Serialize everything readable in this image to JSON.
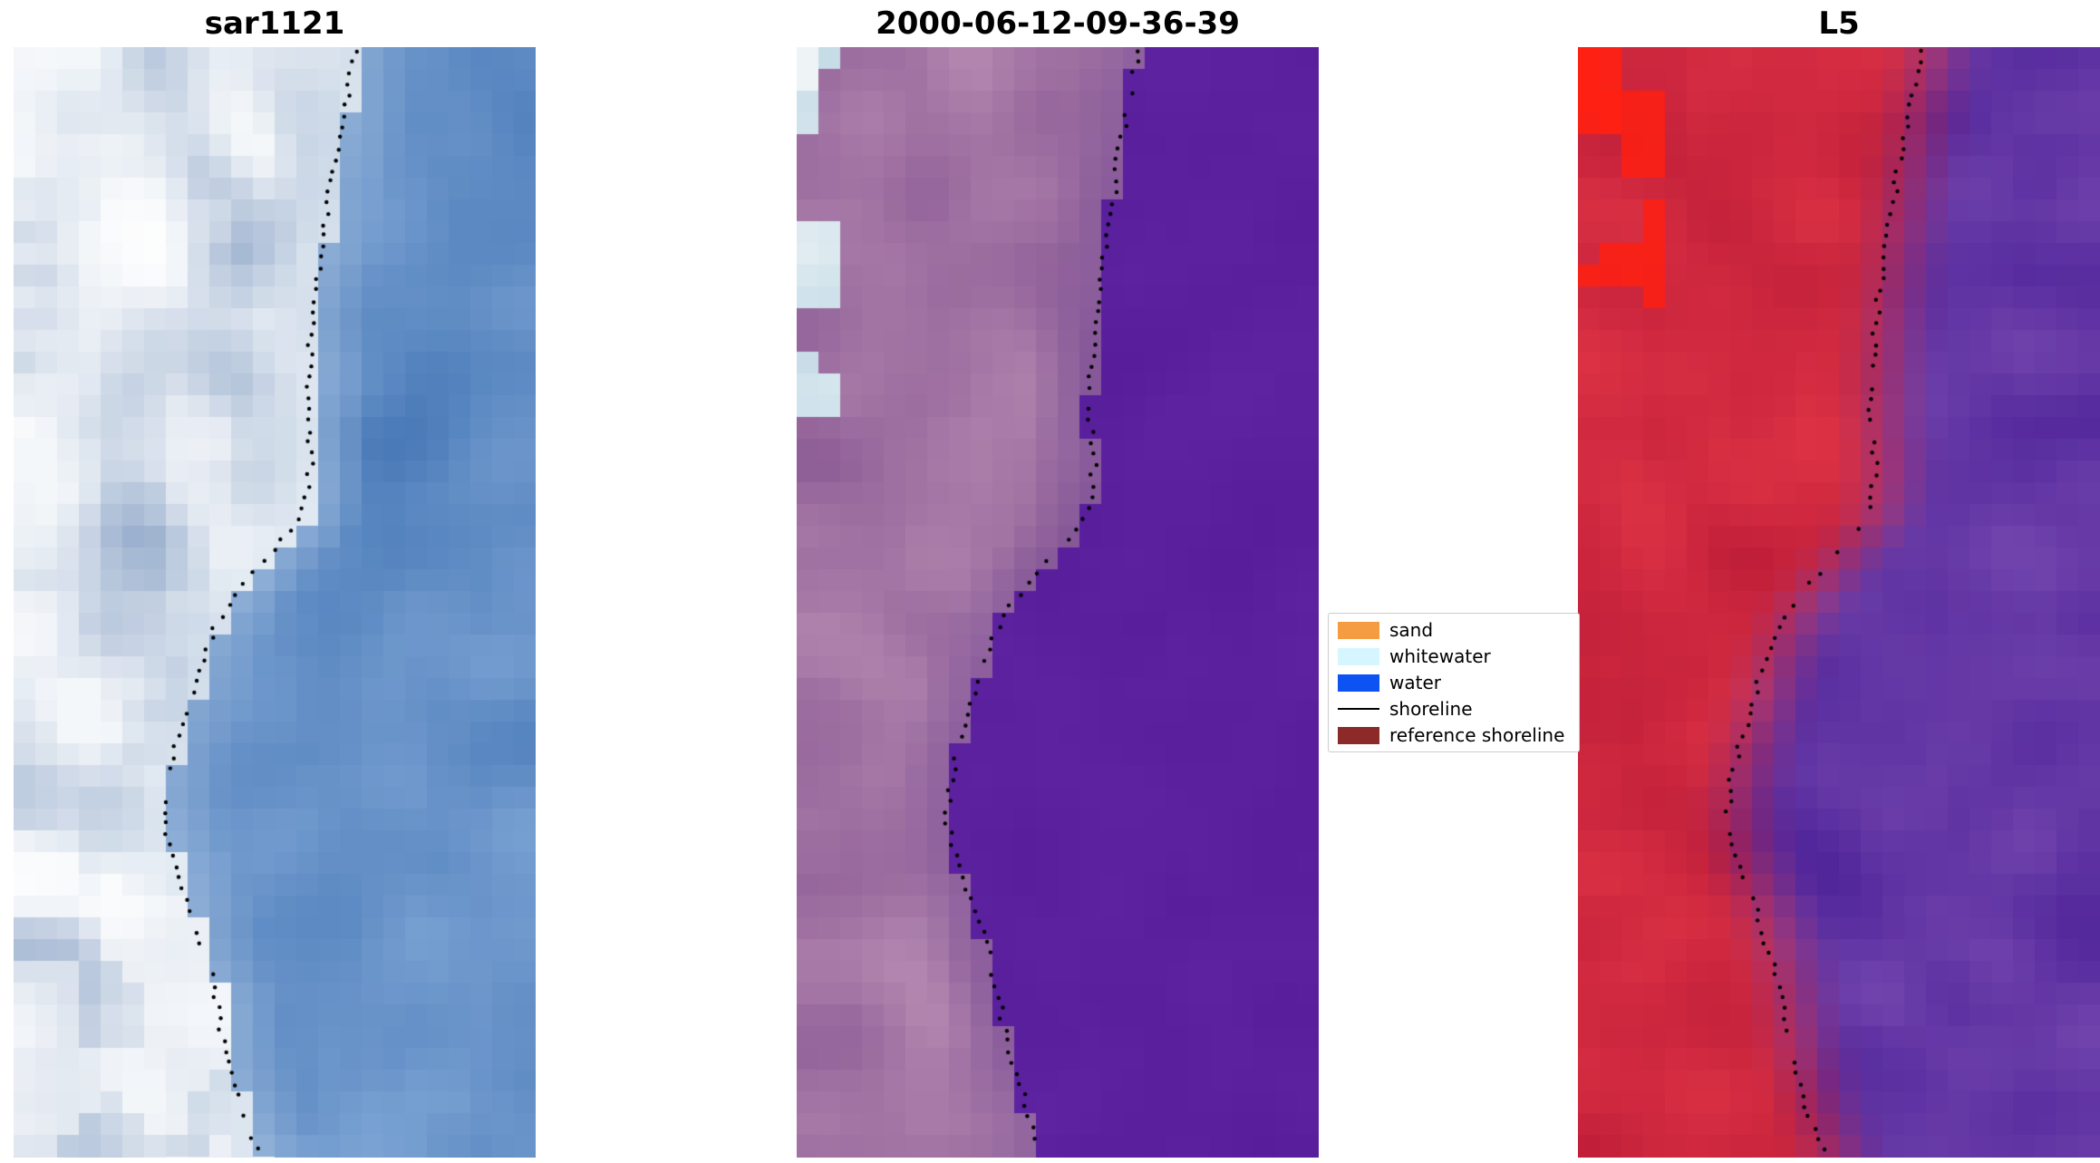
{
  "figure": {
    "background": "#ffffff",
    "panels": [
      {
        "title": "sar1121",
        "kind": "sar",
        "seed": 11,
        "palette": {
          "water_dark": "#4a7ab8",
          "water_light": "#7ba3d4",
          "land_dark": "#8ea6c8",
          "land_light": "#f4f7fa",
          "bright": "#ffffff",
          "nearshore": "#dfe9f2"
        }
      },
      {
        "title": "2000-06-12-09-36-39",
        "kind": "class",
        "seed": 23,
        "palette": {
          "water_dark": "#561c9a",
          "water_light": "#5e24a2",
          "land_dark": "#8f5f97",
          "land_light": "#b286af",
          "near_boundary": "#744694",
          "pale_blue": "#b7d3e2",
          "pale_white": "#eef4f6"
        }
      },
      {
        "title": "L5",
        "kind": "falsecolor",
        "seed": 37,
        "palette": {
          "land_dark": "#bf1e39",
          "land_light": "#dd3245",
          "bright_red": "#ff2012",
          "water_dark": "#50259a",
          "water_light": "#7144ad"
        }
      }
    ],
    "legend": {
      "items": [
        {
          "label": "sand",
          "color": "#f59b42",
          "kind": "patch"
        },
        {
          "label": "whitewater",
          "color": "#d6f6ff",
          "kind": "patch"
        },
        {
          "label": "water",
          "color": "#0d52f2",
          "kind": "patch"
        },
        {
          "label": "shoreline",
          "color": "#000000",
          "kind": "line"
        },
        {
          "label": "reference shoreline",
          "color": "#8c2a2a",
          "kind": "patch"
        }
      ]
    }
  },
  "chart_data": {
    "type": "scatter",
    "description": "Three coastal satellite image panels (SAR image, classified image, Landsat 5 false-color) with a detected shoreline plotted as black dots over each panel",
    "panel_titles": [
      "sar1121",
      "2000-06-12-09-36-39",
      "L5"
    ],
    "legend_entries": [
      "sand",
      "whitewater",
      "water",
      "shoreline",
      "reference shoreline"
    ],
    "axes": "off",
    "grid": false,
    "legend_position": "center-right between panel 2 and panel 3",
    "shoreline_marker": {
      "color": "#000000",
      "size": 4,
      "style": "dot"
    },
    "shoreline_points_normalized": [
      [
        0.0,
        0.655
      ],
      [
        0.05,
        0.636
      ],
      [
        0.1,
        0.617
      ],
      [
        0.16,
        0.597
      ],
      [
        0.22,
        0.578
      ],
      [
        0.28,
        0.566
      ],
      [
        0.34,
        0.562
      ],
      [
        0.385,
        0.568
      ],
      [
        0.425,
        0.545
      ],
      [
        0.465,
        0.478
      ],
      [
        0.505,
        0.408
      ],
      [
        0.545,
        0.365
      ],
      [
        0.585,
        0.338
      ],
      [
        0.63,
        0.31
      ],
      [
        0.68,
        0.289
      ],
      [
        0.725,
        0.3
      ],
      [
        0.765,
        0.33
      ],
      [
        0.805,
        0.36
      ],
      [
        0.855,
        0.386
      ],
      [
        0.905,
        0.407
      ],
      [
        0.95,
        0.436
      ],
      [
        1.0,
        0.47
      ]
    ]
  }
}
